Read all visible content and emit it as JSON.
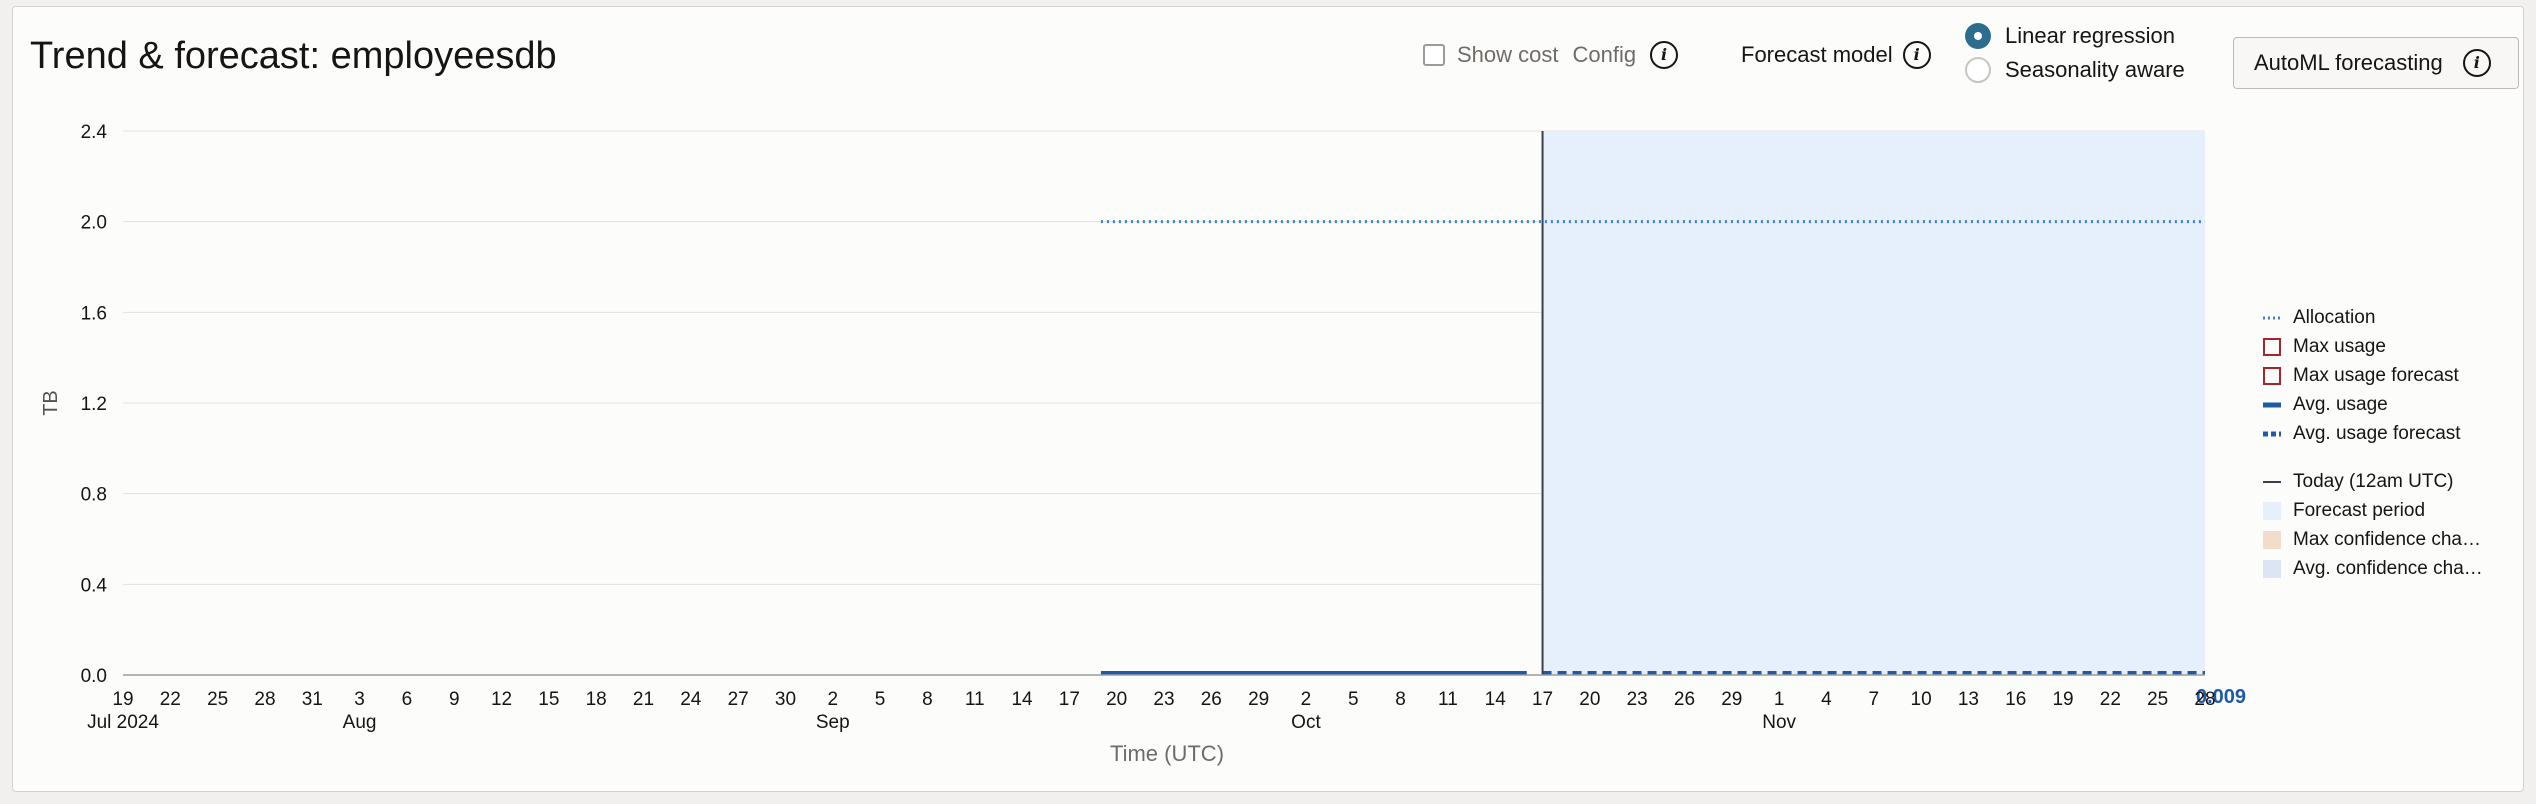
{
  "header": {
    "title": "Trend & forecast: employeesdb",
    "show_cost_label": "Show cost",
    "config_label": "Config",
    "forecast_model_label": "Forecast model",
    "radio_linear": "Linear regression",
    "radio_seasonality": "Seasonality aware",
    "selected_model": "Linear regression",
    "automl_button": "AutoML forecasting"
  },
  "legend": {
    "allocation": "Allocation",
    "max_usage": "Max usage",
    "max_usage_forecast": "Max usage forecast",
    "avg_usage": "Avg. usage",
    "avg_usage_forecast": "Avg. usage forecast",
    "today": "Today (12am UTC)",
    "forecast_period": "Forecast period",
    "max_confidence": "Max confidence cha…",
    "avg_confidence": "Avg. confidence cha…"
  },
  "colors": {
    "allocation": "#3b7fd6",
    "avg_usage": "#1f5aa6",
    "max_usage": "#a4262c",
    "forecast_band": "#e5f0fc",
    "today_line": "#3a3f4a",
    "max_confidence": "#f2dccc",
    "avg_confidence": "#dbe5f3"
  },
  "chart_data": {
    "type": "line",
    "title": "Trend & forecast: employeesdb",
    "xlabel": "Time (UTC)",
    "ylabel": "TB",
    "ylim": [
      0,
      2.4
    ],
    "yticks": [
      "0.0",
      "0.4",
      "0.8",
      "1.2",
      "1.6",
      "2.0",
      "2.4"
    ],
    "xlim": [
      "2024-07-19",
      "2024-11-28"
    ],
    "x_day_ticks": [
      {
        "date": "2024-07-19",
        "label": "19"
      },
      {
        "date": "2024-07-22",
        "label": "22"
      },
      {
        "date": "2024-07-25",
        "label": "25"
      },
      {
        "date": "2024-07-28",
        "label": "28"
      },
      {
        "date": "2024-07-31",
        "label": "31"
      },
      {
        "date": "2024-08-03",
        "label": "3"
      },
      {
        "date": "2024-08-06",
        "label": "6"
      },
      {
        "date": "2024-08-09",
        "label": "9"
      },
      {
        "date": "2024-08-12",
        "label": "12"
      },
      {
        "date": "2024-08-15",
        "label": "15"
      },
      {
        "date": "2024-08-18",
        "label": "18"
      },
      {
        "date": "2024-08-21",
        "label": "21"
      },
      {
        "date": "2024-08-24",
        "label": "24"
      },
      {
        "date": "2024-08-27",
        "label": "27"
      },
      {
        "date": "2024-08-30",
        "label": "30"
      },
      {
        "date": "2024-09-02",
        "label": "2"
      },
      {
        "date": "2024-09-05",
        "label": "5"
      },
      {
        "date": "2024-09-08",
        "label": "8"
      },
      {
        "date": "2024-09-11",
        "label": "11"
      },
      {
        "date": "2024-09-14",
        "label": "14"
      },
      {
        "date": "2024-09-17",
        "label": "17"
      },
      {
        "date": "2024-09-20",
        "label": "20"
      },
      {
        "date": "2024-09-23",
        "label": "23"
      },
      {
        "date": "2024-09-26",
        "label": "26"
      },
      {
        "date": "2024-09-29",
        "label": "29"
      },
      {
        "date": "2024-10-02",
        "label": "2"
      },
      {
        "date": "2024-10-05",
        "label": "5"
      },
      {
        "date": "2024-10-08",
        "label": "8"
      },
      {
        "date": "2024-10-11",
        "label": "11"
      },
      {
        "date": "2024-10-14",
        "label": "14"
      },
      {
        "date": "2024-10-17",
        "label": "17"
      },
      {
        "date": "2024-10-20",
        "label": "20"
      },
      {
        "date": "2024-10-23",
        "label": "23"
      },
      {
        "date": "2024-10-26",
        "label": "26"
      },
      {
        "date": "2024-10-29",
        "label": "29"
      },
      {
        "date": "2024-11-01",
        "label": "1"
      },
      {
        "date": "2024-11-04",
        "label": "4"
      },
      {
        "date": "2024-11-07",
        "label": "7"
      },
      {
        "date": "2024-11-10",
        "label": "10"
      },
      {
        "date": "2024-11-13",
        "label": "13"
      },
      {
        "date": "2024-11-16",
        "label": "16"
      },
      {
        "date": "2024-11-19",
        "label": "19"
      },
      {
        "date": "2024-11-22",
        "label": "22"
      },
      {
        "date": "2024-11-25",
        "label": "25"
      },
      {
        "date": "2024-11-28",
        "label": "28"
      }
    ],
    "x_month_ticks": [
      {
        "date": "2024-07-19",
        "label": "Jul 2024"
      },
      {
        "date": "2024-08-03",
        "label": "Aug"
      },
      {
        "date": "2024-09-02",
        "label": "Sep"
      },
      {
        "date": "2024-10-02",
        "label": "Oct"
      },
      {
        "date": "2024-11-01",
        "label": "Nov"
      }
    ],
    "today": "2024-10-17",
    "forecast_period": [
      "2024-10-17",
      "2024-11-28"
    ],
    "end_value_label": "0.009",
    "series": [
      {
        "name": "Allocation",
        "style": "dotted",
        "x": [
          "2024-09-19",
          "2024-11-28"
        ],
        "values": [
          2.0,
          2.0
        ]
      },
      {
        "name": "Avg. usage",
        "style": "solid",
        "x": [
          "2024-09-19",
          "2024-10-16"
        ],
        "values": [
          0.009,
          0.009
        ]
      },
      {
        "name": "Avg. usage forecast",
        "style": "dashed",
        "x": [
          "2024-10-17",
          "2024-11-28"
        ],
        "values": [
          0.009,
          0.009
        ]
      }
    ],
    "grid": true,
    "legend_position": "right"
  }
}
